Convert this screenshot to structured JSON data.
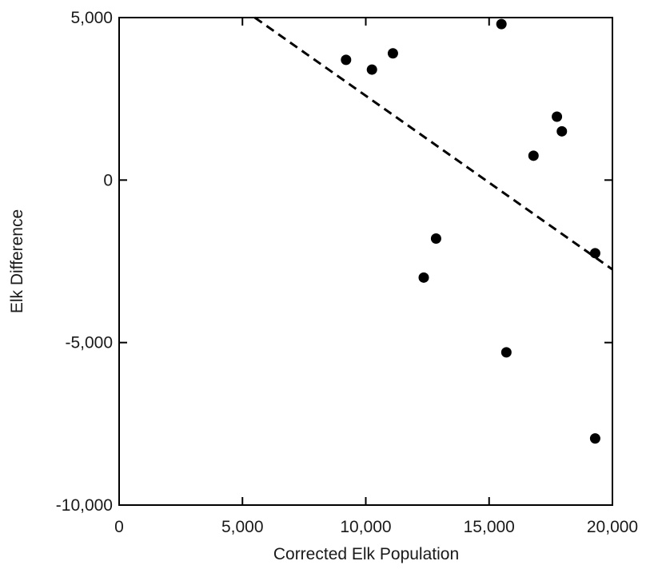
{
  "chart_data": {
    "type": "scatter",
    "title": "",
    "xlabel": "Corrected Elk Population",
    "ylabel": "Elk Difference",
    "xlim": [
      0,
      20000
    ],
    "ylim": [
      -10000,
      5000
    ],
    "grid": false,
    "x_ticks": [
      {
        "value": 0,
        "label": "0"
      },
      {
        "value": 5000,
        "label": "5,000"
      },
      {
        "value": 10000,
        "label": "10,000"
      },
      {
        "value": 15000,
        "label": "15,000"
      },
      {
        "value": 20000,
        "label": "20,000"
      }
    ],
    "y_ticks": [
      {
        "value": 5000,
        "label": "5,000"
      },
      {
        "value": 0,
        "label": "0"
      },
      {
        "value": -5000,
        "label": "-5,000"
      },
      {
        "value": -10000,
        "label": "-10,000"
      }
    ],
    "series": [
      {
        "points": [
          {
            "x": 9200,
            "y": 3700
          },
          {
            "x": 10250,
            "y": 3400
          },
          {
            "x": 11100,
            "y": 3900
          },
          {
            "x": 12350,
            "y": -3000
          },
          {
            "x": 12850,
            "y": -1800
          },
          {
            "x": 15500,
            "y": 4800
          },
          {
            "x": 15700,
            "y": -5300
          },
          {
            "x": 16800,
            "y": 750
          },
          {
            "x": 17750,
            "y": 1950
          },
          {
            "x": 17950,
            "y": 1500
          },
          {
            "x": 19300,
            "y": -2250
          },
          {
            "x": 19300,
            "y": -7950
          }
        ]
      }
    ],
    "fit_line": {
      "style": "dashed",
      "points": [
        {
          "x": 5500,
          "y": 5000
        },
        {
          "x": 20000,
          "y": -2750
        }
      ]
    },
    "colors": {
      "points": "#000000",
      "axes": "#000000",
      "line": "#000000",
      "text": "#1a1a1a"
    }
  }
}
